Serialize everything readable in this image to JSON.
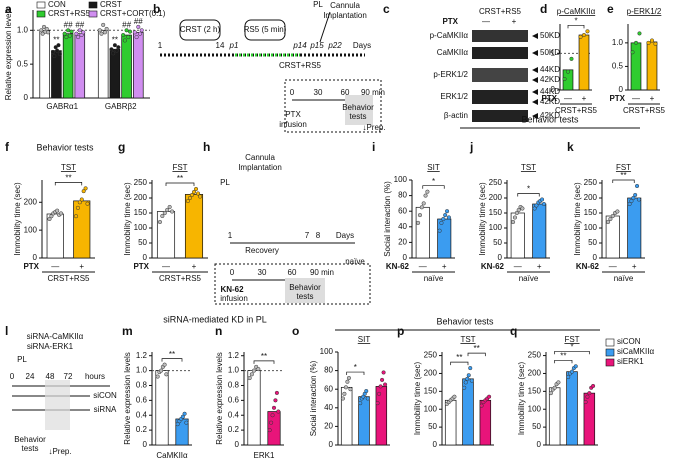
{
  "panel_letters": [
    "a",
    "b",
    "c",
    "d",
    "e",
    "f",
    "g",
    "h",
    "i",
    "j",
    "k",
    "l",
    "m",
    "n",
    "o",
    "p",
    "q"
  ],
  "headers": [
    "Behavior tests",
    "Behavior tests",
    "siRNA-mediated KD in PL",
    "Behavior tests"
  ],
  "diagrams": {
    "b": [
      "CRST (2 h)",
      "RS5 (5 min)",
      "PL",
      "Cannula",
      "Implantation",
      "1",
      "14",
      "p1",
      "p14",
      "p15",
      "p22",
      "Days",
      "CRST+RS5",
      "0",
      "30",
      "60",
      "90 min",
      "PTX",
      "infusion",
      "Behavior",
      "tests",
      "↓Prep."
    ],
    "c": {
      "title": "CRST+RS5",
      "treatment": "PTX",
      "conditions": [
        "—",
        "+"
      ],
      "rows": [
        {
          "name": "p-CaMKIIα",
          "sizes": [
            "50KD"
          ]
        },
        {
          "name": "CaMKIIα",
          "sizes": [
            "50KD"
          ]
        },
        {
          "name": "p-ERK1/2",
          "sizes": [
            "44KD",
            "42KD"
          ]
        },
        {
          "name": "ERK1/2",
          "sizes": [
            "44KD",
            "42KD"
          ]
        },
        {
          "name": "β-actin",
          "sizes": [
            "42KD"
          ]
        }
      ]
    },
    "h": [
      "Cannula",
      "Implantation",
      "PL",
      "1",
      "7",
      "8",
      "Days",
      "Recovery",
      "naïve",
      "0",
      "30",
      "60",
      "90 min",
      "KN-62",
      "infusion",
      "Behavior",
      "tests"
    ],
    "l": [
      "siRNA-CaMKIIα",
      "siRNA-ERK1",
      "PL",
      "0",
      "24",
      "48",
      "72",
      "hours",
      "siCON",
      "siRNA",
      "Behavior",
      "tests",
      "↓Prep."
    ]
  },
  "chart_data": [
    {
      "type": "grouped_bar",
      "ylabel": "Relative expression levels",
      "ylim": [
        0,
        1.3
      ],
      "yticks": [
        0,
        0.5,
        {
          "value": 1,
          "label": "1.0"
        }
      ],
      "reference": 1,
      "legend": "top",
      "categories": [
        "GABRα1",
        "GABRβ2"
      ],
      "series": [
        {
          "name": "CON",
          "color": "#ffffff",
          "values": [
            1.0,
            1.0
          ],
          "points": [
            [
              1.0,
              0.95,
              1.05,
              0.98,
              1.02,
              0.97
            ],
            [
              1.0,
              0.95,
              1.08,
              0.97,
              1.02
            ]
          ]
        },
        {
          "name": "CRST",
          "color": "#1a1a1a",
          "values": [
            0.7,
            0.72
          ],
          "sig": [
            "**",
            "**"
          ],
          "points": [
            [
              0.68,
              0.62,
              0.75,
              0.7,
              0.78,
              0.65
            ],
            [
              0.72,
              0.66,
              0.78,
              0.7,
              0.75
            ]
          ]
        },
        {
          "name": "CRST+RS5",
          "color": "#2fcc2f",
          "values": [
            0.95,
            0.93
          ],
          "sig": [
            "##",
            "##"
          ],
          "points": [
            [
              0.95,
              0.9,
              1.0,
              0.92,
              0.98
            ],
            [
              0.93,
              0.85,
              1.0,
              0.9,
              0.98
            ]
          ]
        },
        {
          "name": "CRST+CORT(0.1)",
          "color": "#d08ef0",
          "values": [
            0.95,
            0.97
          ],
          "sig": [
            "##",
            "##"
          ],
          "points": [
            [
              0.95,
              0.9,
              1.0,
              0.93,
              0.97
            ],
            [
              0.97,
              0.9,
              1.05,
              0.95,
              1.0
            ]
          ]
        }
      ]
    },
    {
      "type": "bar",
      "title": "p-CaMKIIα",
      "ylim": [
        0,
        1.8
      ],
      "yticks": [
        0,
        1
      ],
      "reference": 1,
      "treatment": "PTX",
      "treatment_color": "#f0a000",
      "categories": [
        "—",
        "+"
      ],
      "group_label": "CRST+RS5",
      "colors": [
        "#2fcc2f",
        "#f7b500"
      ],
      "values": [
        0.55,
        1.5
      ],
      "points": [
        [
          0.3,
          0.5,
          0.85
        ],
        [
          1.45,
          1.5,
          1.6
        ]
      ],
      "significance": [
        {
          "label": "*",
          "between": [
            0,
            1
          ]
        }
      ]
    },
    {
      "type": "bar",
      "title": "p-ERK1/2",
      "ylim": [
        0,
        1.4
      ],
      "yticks": [
        0,
        0.5,
        {
          "value": 1,
          "label": "1.0"
        }
      ],
      "treatment": "PTX",
      "treatment_color": "#f0a000",
      "categories": [
        "—",
        "+"
      ],
      "group_label": "CRST+RS5",
      "colors": [
        "#2fcc2f",
        "#f7b500"
      ],
      "values": [
        1.0,
        1.02
      ],
      "points": [
        [
          0.8,
          1.0,
          1.2
        ],
        [
          1.0,
          1.05,
          0.98
        ]
      ]
    },
    {
      "type": "bar",
      "title": "TST",
      "ylabel": "Immobility time (sec)",
      "ylim": [
        0,
        280
      ],
      "yticks": [
        0,
        100,
        200
      ],
      "treatment": "PTX",
      "treatment_color": "#f0a000",
      "categories": [
        "—",
        "+"
      ],
      "group_label": "CRST+RS5",
      "colors": [
        "#ffffff",
        "#f7b500"
      ],
      "values": [
        158,
        205
      ],
      "points": [
        [
          140,
          150,
          160,
          165,
          170,
          155,
          160
        ],
        [
          150,
          180,
          200,
          210,
          240,
          250,
          195
        ]
      ],
      "significance": [
        {
          "label": "**",
          "between": [
            0,
            1
          ]
        }
      ]
    },
    {
      "type": "bar",
      "title": "FST",
      "ylabel": "Immobility time (sec)",
      "ylim": [
        0,
        260
      ],
      "yticks": [
        0,
        50,
        100,
        150,
        200,
        250
      ],
      "treatment": "PTX",
      "treatment_color": "#f0a000",
      "categories": [
        "—",
        "+"
      ],
      "group_label": "CRST+RS5",
      "colors": [
        "#ffffff",
        "#f7b500"
      ],
      "values": [
        155,
        212
      ],
      "points": [
        [
          120,
          140,
          150,
          160,
          170,
          155
        ],
        [
          190,
          200,
          210,
          220,
          230,
          215,
          205
        ]
      ],
      "significance": [
        {
          "label": "**",
          "between": [
            0,
            1
          ]
        }
      ]
    },
    {
      "type": "bar",
      "title": "SIT",
      "ylabel": "Social interaction (%)",
      "ylim": [
        0,
        100
      ],
      "yticks": [
        0,
        20,
        40,
        60,
        80,
        100
      ],
      "treatment": "KN-62",
      "treatment_color": "#1f6fd0",
      "categories": [
        "—",
        "+"
      ],
      "group_label": "naïve",
      "colors": [
        "#ffffff",
        "#3b9cf0"
      ],
      "values": [
        65,
        50
      ],
      "points": [
        [
          45,
          55,
          65,
          70,
          80,
          85
        ],
        [
          35,
          45,
          50,
          55,
          60,
          52
        ]
      ],
      "significance": [
        {
          "label": "*",
          "between": [
            0,
            1
          ]
        }
      ]
    },
    {
      "type": "bar",
      "title": "TST",
      "ylabel": "Immobility time (sec)",
      "ylim": [
        0,
        260
      ],
      "yticks": [
        0,
        50,
        100,
        150,
        200,
        250
      ],
      "treatment": "KN-62",
      "treatment_color": "#1f6fd0",
      "categories": [
        "—",
        "+"
      ],
      "group_label": "naïve",
      "colors": [
        "#ffffff",
        "#3b9cf0"
      ],
      "values": [
        150,
        180
      ],
      "points": [
        [
          120,
          135,
          150,
          160,
          170,
          165
        ],
        [
          165,
          175,
          185,
          190,
          195,
          180
        ]
      ],
      "significance": [
        {
          "label": "*",
          "between": [
            0,
            1
          ]
        }
      ]
    },
    {
      "type": "bar",
      "title": "FST",
      "ylabel": "Immobility time (sec)",
      "ylim": [
        0,
        260
      ],
      "yticks": [
        0,
        50,
        100,
        150,
        200,
        250
      ],
      "treatment": "KN-62",
      "treatment_color": "#1f6fd0",
      "categories": [
        "—",
        "+"
      ],
      "group_label": "naïve",
      "colors": [
        "#ffffff",
        "#3b9cf0"
      ],
      "values": [
        140,
        200
      ],
      "points": [
        [
          120,
          130,
          140,
          150,
          155
        ],
        [
          180,
          190,
          200,
          210,
          240,
          195
        ]
      ],
      "significance": [
        {
          "label": "**",
          "between": [
            0,
            1
          ]
        }
      ]
    },
    {
      "type": "bar",
      "ylabel": "Relative expression levels",
      "xlabel": "CaMKIIα",
      "ylim": [
        0,
        1.25
      ],
      "yticks": [
        0,
        0.2,
        0.4,
        0.6,
        0.8,
        {
          "value": 1,
          "label": "1.0"
        },
        1.2
      ],
      "reference": 1,
      "categories": [
        null,
        null
      ],
      "colors": [
        "#ffffff",
        "#3b9cf0"
      ],
      "values": [
        1.0,
        0.35
      ],
      "points": [
        [
          0.92,
          0.98,
          1.0,
          1.05,
          1.08,
          0.95
        ],
        [
          0.28,
          0.32,
          0.35,
          0.38,
          0.42,
          0.3
        ]
      ],
      "significance": [
        {
          "label": "**",
          "between": [
            0,
            1
          ]
        }
      ]
    },
    {
      "type": "bar",
      "ylabel": "Relative expression levels",
      "xlabel": "ERK1",
      "ylim": [
        0,
        1.25
      ],
      "yticks": [
        0,
        0.2,
        0.4,
        0.6,
        0.8,
        {
          "value": 1,
          "label": "1.0"
        },
        1.2
      ],
      "reference": 1,
      "categories": [
        null,
        null
      ],
      "colors": [
        "#ffffff",
        "#e8147a"
      ],
      "values": [
        1.0,
        0.45
      ],
      "points": [
        [
          0.9,
          0.95,
          1.0,
          1.05,
          1.02
        ],
        [
          0.2,
          0.3,
          0.4,
          0.5,
          0.6,
          0.7,
          0.45
        ]
      ],
      "significance": [
        {
          "label": "**",
          "between": [
            0,
            1
          ]
        }
      ]
    },
    {
      "type": "bar",
      "title": "SIT",
      "ylabel": "Social interaction (%)",
      "ylim": [
        0,
        100
      ],
      "yticks": [
        0,
        20,
        40,
        60,
        80,
        100
      ],
      "categories": [
        null,
        null,
        null
      ],
      "colors": [
        "#ffffff",
        "#3b9cf0",
        "#e8147a"
      ],
      "values": [
        62,
        52,
        63
      ],
      "points": [
        [
          50,
          55,
          62,
          68,
          72,
          60
        ],
        [
          45,
          50,
          52,
          55,
          58,
          50
        ],
        [
          45,
          55,
          63,
          70,
          78,
          65
        ]
      ],
      "significance": [
        {
          "label": "*",
          "between": [
            0,
            1
          ]
        }
      ]
    },
    {
      "type": "bar",
      "title": "TST",
      "ylabel": "Immobility time (sec)",
      "ylim": [
        0,
        260
      ],
      "yticks": [
        0,
        50,
        100,
        150,
        200,
        250
      ],
      "categories": [
        null,
        null,
        null
      ],
      "colors": [
        "#ffffff",
        "#3b9cf0",
        "#e8147a"
      ],
      "values": [
        125,
        185,
        125
      ],
      "points": [
        [
          115,
          120,
          125,
          130,
          135
        ],
        [
          160,
          175,
          185,
          195,
          215,
          180
        ],
        [
          110,
          120,
          125,
          130,
          135
        ]
      ],
      "significance": [
        {
          "label": "**",
          "between": [
            0,
            1
          ]
        },
        {
          "label": "**",
          "between": [
            1,
            2
          ]
        }
      ]
    },
    {
      "type": "bar",
      "title": "FST",
      "ylabel": "Immobility time (sec)",
      "ylim": [
        0,
        260
      ],
      "yticks": [
        0,
        50,
        100,
        150,
        200,
        250
      ],
      "legend": "right",
      "categories": [
        "siCON",
        "siCaMKIIα",
        "siERK1"
      ],
      "colors": [
        "#ffffff",
        "#3b9cf0",
        "#e8147a"
      ],
      "values": [
        160,
        205,
        145
      ],
      "points": [
        [
          145,
          155,
          160,
          170,
          175
        ],
        [
          190,
          200,
          205,
          215,
          220
        ],
        [
          120,
          135,
          145,
          160,
          165
        ]
      ],
      "significance": [
        {
          "label": "**",
          "between": [
            0,
            1
          ]
        },
        {
          "label": "*",
          "between": [
            0,
            2
          ]
        }
      ]
    }
  ]
}
